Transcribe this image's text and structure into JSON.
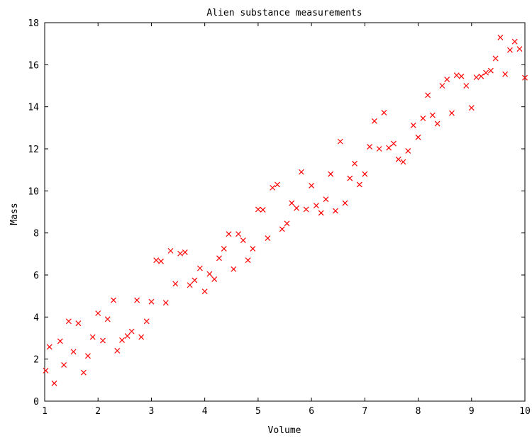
{
  "chart_data": {
    "type": "scatter",
    "title": "Alien substance measurements",
    "xlabel": "Volume",
    "ylabel": "Mass",
    "xlim": [
      1,
      10
    ],
    "ylim": [
      0,
      18
    ],
    "xticks": [
      1,
      2,
      3,
      4,
      5,
      6,
      7,
      8,
      9,
      10
    ],
    "yticks": [
      0,
      2,
      4,
      6,
      8,
      10,
      12,
      14,
      16,
      18
    ],
    "grid": false,
    "marker": "x",
    "marker_color": "#ff0000",
    "series": [
      {
        "points": [
          [
            1.02,
            1.45
          ],
          [
            1.09,
            2.58
          ],
          [
            1.18,
            0.85
          ],
          [
            1.29,
            2.85
          ],
          [
            1.36,
            1.72
          ],
          [
            1.45,
            3.8
          ],
          [
            1.54,
            2.35
          ],
          [
            1.63,
            3.7
          ],
          [
            1.73,
            1.36
          ],
          [
            1.81,
            2.15
          ],
          [
            1.9,
            3.05
          ],
          [
            2.0,
            4.18
          ],
          [
            2.09,
            2.88
          ],
          [
            2.18,
            3.9
          ],
          [
            2.29,
            4.8
          ],
          [
            2.36,
            2.4
          ],
          [
            2.45,
            2.9
          ],
          [
            2.55,
            3.1
          ],
          [
            2.63,
            3.32
          ],
          [
            2.73,
            4.8
          ],
          [
            2.81,
            3.05
          ],
          [
            2.91,
            3.8
          ],
          [
            3.0,
            4.73
          ],
          [
            3.09,
            6.7
          ],
          [
            3.18,
            6.65
          ],
          [
            3.27,
            4.68
          ],
          [
            3.36,
            7.15
          ],
          [
            3.45,
            5.58
          ],
          [
            3.54,
            7.02
          ],
          [
            3.63,
            7.08
          ],
          [
            3.72,
            5.52
          ],
          [
            3.81,
            5.75
          ],
          [
            3.91,
            6.32
          ],
          [
            4.0,
            5.22
          ],
          [
            4.09,
            6.05
          ],
          [
            4.18,
            5.8
          ],
          [
            4.27,
            6.8
          ],
          [
            4.36,
            7.25
          ],
          [
            4.45,
            7.95
          ],
          [
            4.54,
            6.28
          ],
          [
            4.63,
            7.95
          ],
          [
            4.72,
            7.65
          ],
          [
            4.81,
            6.7
          ],
          [
            4.9,
            7.25
          ],
          [
            5.0,
            9.12
          ],
          [
            5.09,
            9.1
          ],
          [
            5.18,
            7.75
          ],
          [
            5.27,
            10.15
          ],
          [
            5.36,
            10.3
          ],
          [
            5.45,
            8.18
          ],
          [
            5.54,
            8.45
          ],
          [
            5.63,
            9.42
          ],
          [
            5.72,
            9.18
          ],
          [
            5.81,
            10.9
          ],
          [
            5.9,
            9.12
          ],
          [
            6.0,
            10.25
          ],
          [
            6.09,
            9.3
          ],
          [
            6.18,
            8.95
          ],
          [
            6.27,
            9.6
          ],
          [
            6.36,
            10.8
          ],
          [
            6.45,
            9.05
          ],
          [
            6.54,
            12.35
          ],
          [
            6.63,
            9.42
          ],
          [
            6.72,
            10.6
          ],
          [
            6.81,
            11.3
          ],
          [
            6.9,
            10.3
          ],
          [
            7.0,
            10.8
          ],
          [
            7.09,
            12.1
          ],
          [
            7.18,
            13.32
          ],
          [
            7.27,
            12.0
          ],
          [
            7.36,
            13.72
          ],
          [
            7.45,
            12.05
          ],
          [
            7.54,
            12.25
          ],
          [
            7.63,
            11.5
          ],
          [
            7.72,
            11.38
          ],
          [
            7.81,
            11.9
          ],
          [
            7.91,
            13.12
          ],
          [
            8.0,
            12.55
          ],
          [
            8.09,
            13.45
          ],
          [
            8.18,
            14.55
          ],
          [
            8.27,
            13.6
          ],
          [
            8.36,
            13.2
          ],
          [
            8.45,
            15.0
          ],
          [
            8.54,
            15.3
          ],
          [
            8.63,
            13.7
          ],
          [
            8.72,
            15.5
          ],
          [
            8.81,
            15.45
          ],
          [
            8.9,
            15.0
          ],
          [
            9.0,
            13.95
          ],
          [
            9.09,
            15.4
          ],
          [
            9.18,
            15.45
          ],
          [
            9.27,
            15.62
          ],
          [
            9.36,
            15.72
          ],
          [
            9.45,
            16.3
          ],
          [
            9.54,
            17.3
          ],
          [
            9.63,
            15.55
          ],
          [
            9.72,
            16.7
          ],
          [
            9.81,
            17.1
          ],
          [
            9.9,
            16.75
          ],
          [
            10.0,
            15.38
          ]
        ]
      }
    ]
  }
}
